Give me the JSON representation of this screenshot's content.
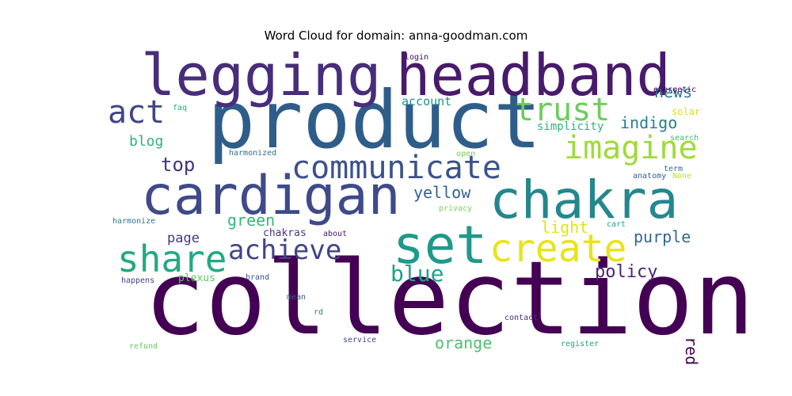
{
  "chart_data": {
    "type": "wordcloud",
    "title": "Word Cloud for domain: anna-goodman.com",
    "words": [
      {
        "text": "collection",
        "color": "#440154"
      },
      {
        "text": "product",
        "color": "#2f5d8a"
      },
      {
        "text": "headband",
        "color": "#481a6c"
      },
      {
        "text": "legging",
        "color": "#472d7b"
      },
      {
        "text": "cardigan",
        "color": "#3e4a89"
      },
      {
        "text": "chakra",
        "color": "#24878e"
      },
      {
        "text": "set",
        "color": "#1f998a"
      },
      {
        "text": "create",
        "color": "#e8e419"
      },
      {
        "text": "share",
        "color": "#23a983"
      },
      {
        "text": "communicate",
        "color": "#3b528b"
      },
      {
        "text": "imagine",
        "color": "#a0da39"
      },
      {
        "text": "trust",
        "color": "#6ccd5a"
      },
      {
        "text": "act",
        "color": "#404688"
      },
      {
        "text": "achieve",
        "color": "#414487"
      },
      {
        "text": "blue",
        "color": "#1fa187"
      },
      {
        "text": "yellow",
        "color": "#33638d"
      },
      {
        "text": "top",
        "color": "#46327e"
      },
      {
        "text": "indigo",
        "color": "#287d8e"
      },
      {
        "text": "policy",
        "color": "#482576"
      },
      {
        "text": "purple",
        "color": "#30698e"
      },
      {
        "text": "light",
        "color": "#dfe318"
      },
      {
        "text": "orange",
        "color": "#4ac16d"
      },
      {
        "text": "news",
        "color": "#2a788e"
      },
      {
        "text": "red",
        "color": "#440154"
      },
      {
        "text": "green",
        "color": "#35b779"
      },
      {
        "text": "blog",
        "color": "#2db27d"
      },
      {
        "text": "page",
        "color": "#453882"
      },
      {
        "text": "account",
        "color": "#21918c"
      },
      {
        "text": "simplicity",
        "color": "#2eb37c"
      },
      {
        "text": "chakras",
        "color": "#453781"
      },
      {
        "text": "plexus",
        "color": "#5ec962"
      },
      {
        "text": "solar",
        "color": "#d8e219"
      },
      {
        "text": "energetic",
        "color": "#440154"
      },
      {
        "text": "login",
        "color": "#46085c"
      },
      {
        "text": "faq",
        "color": "#26ad81"
      },
      {
        "text": "harmonized",
        "color": "#2d708e"
      },
      {
        "text": "search",
        "color": "#3fbc73"
      },
      {
        "text": "open",
        "color": "#75d054"
      },
      {
        "text": "term",
        "color": "#2c728e"
      },
      {
        "text": "anatomy",
        "color": "#355f8d"
      },
      {
        "text": "None",
        "color": "#bddf26"
      },
      {
        "text": "harmonize",
        "color": "#287c8e"
      },
      {
        "text": "privacy",
        "color": "#7ad151"
      },
      {
        "text": "cart",
        "color": "#22a884"
      },
      {
        "text": "about",
        "color": "#481668"
      },
      {
        "text": "happens",
        "color": "#433e85"
      },
      {
        "text": "brand",
        "color": "#3b518b"
      },
      {
        "text": "mean",
        "color": "#39568c"
      },
      {
        "text": "rd",
        "color": "#26828e"
      },
      {
        "text": "contact",
        "color": "#46307e"
      },
      {
        "text": "service",
        "color": "#3e4989"
      },
      {
        "text": "register",
        "color": "#20a386"
      },
      {
        "text": "refund",
        "color": "#65cb5e"
      }
    ]
  }
}
